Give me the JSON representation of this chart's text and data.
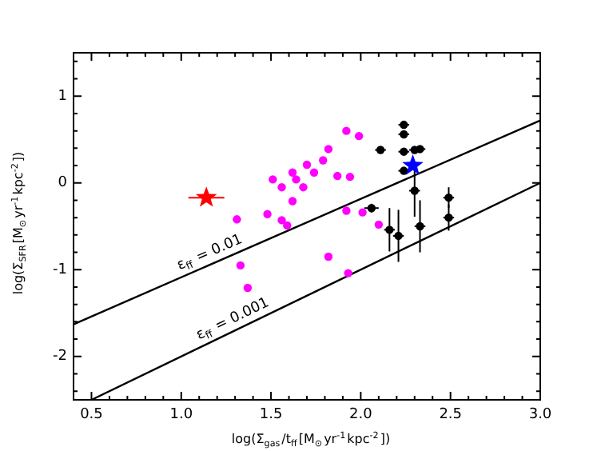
{
  "chart_data": {
    "type": "scatter",
    "xlabel": "log(Σ$_{gas}$/t$_{ff}$[M$_{⊙}$yr$^{-1}$kpc$^{-2}$])",
    "ylabel": "log(Σ$_{SFR}$[M$_{⊙}$yr$^{-1}$kpc$^{-2}$])",
    "xlim": [
      0.4,
      3.0
    ],
    "ylim": [
      -2.5,
      1.5
    ],
    "xticks": [
      {
        "value": 0.4,
        "label": null
      },
      {
        "value": 0.5,
        "label": "0.5"
      },
      {
        "value": 0.6,
        "label": null
      },
      {
        "value": 0.7,
        "label": null
      },
      {
        "value": 0.8,
        "label": null
      },
      {
        "value": 0.9,
        "label": null
      },
      {
        "value": 1.0,
        "label": "1.0"
      },
      {
        "value": 1.1,
        "label": null
      },
      {
        "value": 1.2,
        "label": null
      },
      {
        "value": 1.3,
        "label": null
      },
      {
        "value": 1.4,
        "label": null
      },
      {
        "value": 1.5,
        "label": "1.5"
      },
      {
        "value": 1.6,
        "label": null
      },
      {
        "value": 1.7,
        "label": null
      },
      {
        "value": 1.8,
        "label": null
      },
      {
        "value": 1.9,
        "label": null
      },
      {
        "value": 2.0,
        "label": "2.0"
      },
      {
        "value": 2.1,
        "label": null
      },
      {
        "value": 2.2,
        "label": null
      },
      {
        "value": 2.3,
        "label": null
      },
      {
        "value": 2.4,
        "label": null
      },
      {
        "value": 2.5,
        "label": "2.5"
      },
      {
        "value": 2.6,
        "label": null
      },
      {
        "value": 2.7,
        "label": null
      },
      {
        "value": 2.8,
        "label": null
      },
      {
        "value": 2.9,
        "label": null
      },
      {
        "value": 3.0,
        "label": "3.0"
      }
    ],
    "yticks": [
      {
        "value": -2.4,
        "label": null
      },
      {
        "value": -2.2,
        "label": null
      },
      -2,
      {
        "value": -1.8,
        "label": null
      },
      {
        "value": -1.6,
        "label": null
      },
      {
        "value": -1.4,
        "label": null
      },
      {
        "value": -1.2,
        "label": null
      },
      -1,
      {
        "value": -0.8,
        "label": null
      },
      {
        "value": -0.6,
        "label": null
      },
      {
        "value": -0.4,
        "label": null
      },
      {
        "value": -0.2,
        "label": null
      },
      0,
      {
        "value": 0.2,
        "label": null
      },
      {
        "value": 0.4,
        "label": null
      },
      {
        "value": 0.6,
        "label": null
      },
      {
        "value": 0.8,
        "label": null
      },
      1,
      {
        "value": 1.2,
        "label": null
      },
      {
        "value": 1.4,
        "label": null
      }
    ],
    "grid": false,
    "legend": false,
    "series": [
      {
        "type": "line",
        "color": "#000000",
        "x": [
          0.4,
          3.0
        ],
        "values": [
          -1.63,
          0.72
        ]
      },
      {
        "type": "line",
        "color": "#000000",
        "x": [
          0.5,
          3.0
        ],
        "values": [
          -2.5,
          0.0
        ]
      },
      {
        "marker": "circle",
        "color": "#ff00ff",
        "x": [
          1.31,
          1.33,
          1.37,
          1.48,
          1.51,
          1.56,
          1.56,
          1.59,
          1.62,
          1.62,
          1.64,
          1.68,
          1.7,
          1.74,
          1.79,
          1.82,
          1.82,
          1.87,
          1.92,
          1.94,
          1.92,
          1.93,
          1.99,
          2.01,
          2.1
        ],
        "values": [
          -0.42,
          -0.95,
          -1.21,
          -0.36,
          0.04,
          -0.05,
          -0.43,
          -0.49,
          0.12,
          -0.21,
          0.04,
          -0.05,
          0.21,
          0.12,
          0.26,
          0.39,
          -0.85,
          0.08,
          0.6,
          0.07,
          -0.32,
          -1.04,
          0.54,
          -0.34,
          -0.48
        ]
      },
      {
        "marker": "circle",
        "color": "#000000",
        "x": [
          2.11,
          2.06,
          2.16,
          2.21,
          2.24,
          2.24,
          2.24,
          2.24,
          2.3,
          2.33,
          2.3,
          2.33,
          2.49,
          2.49
        ],
        "values": [
          0.38,
          -0.29,
          -0.54,
          -0.61,
          0.67,
          0.56,
          0.36,
          0.14,
          0.38,
          0.39,
          -0.09,
          -0.5,
          -0.17,
          -0.4
        ],
        "errors": [
          0.04,
          0.05,
          0.25,
          0.3,
          0.04,
          0.04,
          0.04,
          0.04,
          0.04,
          0.04,
          0.3,
          0.3,
          0.12,
          0.15
        ],
        "xerrors": [
          0.03,
          0.04,
          0.03,
          0.03,
          0.03,
          0.03,
          0.03,
          0.03,
          0.03,
          0.03,
          0.03,
          0.03,
          0.03,
          0.03
        ]
      },
      {
        "marker": "star",
        "color": "#0000ff",
        "x": [
          2.29
        ],
        "values": [
          0.2
        ]
      },
      {
        "marker": "star",
        "color": "#ff0000",
        "x": [
          1.14
        ],
        "values": [
          -0.17
        ],
        "xerrors": [
          0.1
        ]
      }
    ],
    "annotations": [
      "ε$_{ff}$ = 0.01",
      "ε$_{ff}$ = 0.001"
    ]
  }
}
